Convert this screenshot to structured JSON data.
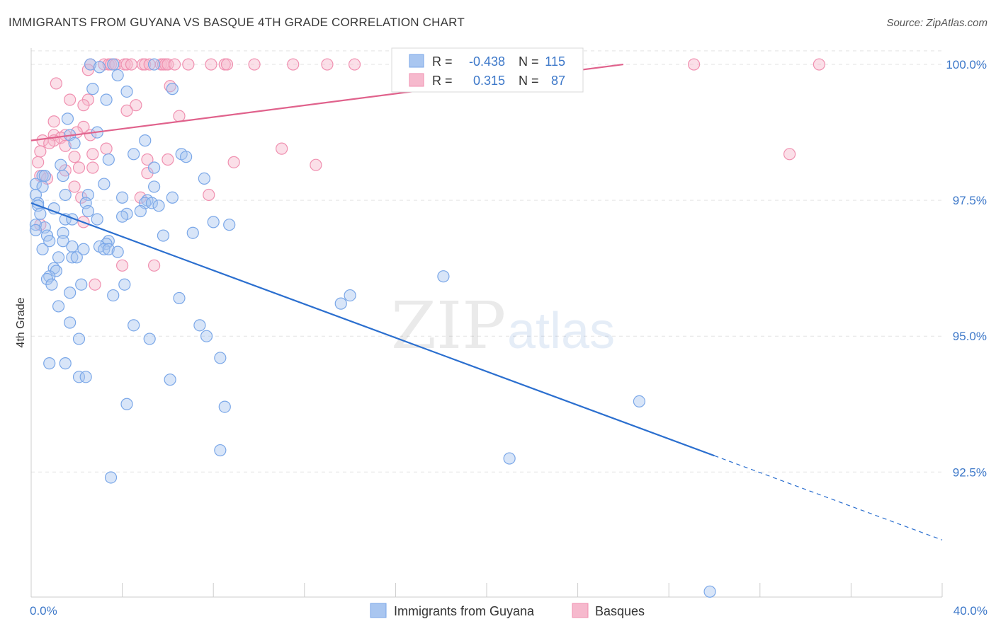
{
  "header": {
    "title": "IMMIGRANTS FROM GUYANA VS BASQUE 4TH GRADE CORRELATION CHART",
    "source": "Source: ZipAtlas.com"
  },
  "watermark": {
    "zip": "ZIP",
    "atlas": "atlas"
  },
  "colors": {
    "guyana": "#7aa7e8",
    "guyana_fill": "#a9c6f0",
    "guyana_line": "#2b6fcf",
    "basques": "#f090b0",
    "basques_fill": "#f6b9cd",
    "basques_line": "#e0628c",
    "axis_text": "#3d78c9",
    "grid": "#dddddd"
  },
  "legend_top": {
    "rows": [
      {
        "r_label": "R =",
        "r_value": "-0.438",
        "n_label": "N =",
        "n_value": "115"
      },
      {
        "r_label": "R =",
        "r_value": "0.315",
        "n_label": "N =",
        "n_value": "87"
      }
    ]
  },
  "legend_bottom": [
    "Immigrants from Guyana",
    "Basques"
  ],
  "chart_data": {
    "type": "scatter",
    "title": "IMMIGRANTS FROM GUYANA VS BASQUE 4TH GRADE CORRELATION CHART",
    "xlabel": "",
    "ylabel": "4th Grade",
    "xlim": [
      0,
      40
    ],
    "ylim": [
      90.2,
      100.3
    ],
    "x_tick_labels": [
      "0.0%",
      "40.0%"
    ],
    "y_ticks": [
      92.5,
      95.0,
      97.5,
      100.0
    ],
    "y_tick_labels": [
      "92.5%",
      "95.0%",
      "97.5%",
      "100.0%"
    ],
    "grid": "horizontal dashed",
    "legend_placement": "top-center",
    "series": [
      {
        "name": "Immigrants from Guyana",
        "r": -0.438,
        "n": 115,
        "trend": {
          "x0": 0,
          "y0": 97.45,
          "x1": 30,
          "y1": 92.8,
          "dashed_to_x": 40,
          "dashed_to_y": 91.25
        },
        "points": [
          [
            2.6,
            100.0
          ],
          [
            3.6,
            100.0
          ],
          [
            3.0,
            99.95
          ],
          [
            3.8,
            99.8
          ],
          [
            5.4,
            100.0
          ],
          [
            2.7,
            99.55
          ],
          [
            4.2,
            99.5
          ],
          [
            6.2,
            99.55
          ],
          [
            3.3,
            99.35
          ],
          [
            1.6,
            99.0
          ],
          [
            2.9,
            98.75
          ],
          [
            1.7,
            98.7
          ],
          [
            1.9,
            98.55
          ],
          [
            5.0,
            98.6
          ],
          [
            4.5,
            98.35
          ],
          [
            6.6,
            98.35
          ],
          [
            3.4,
            98.25
          ],
          [
            6.8,
            98.3
          ],
          [
            1.3,
            98.15
          ],
          [
            5.4,
            98.1
          ],
          [
            0.5,
            97.95
          ],
          [
            0.6,
            97.95
          ],
          [
            1.4,
            97.95
          ],
          [
            7.6,
            97.9
          ],
          [
            3.2,
            97.8
          ],
          [
            0.2,
            97.8
          ],
          [
            0.5,
            97.75
          ],
          [
            5.4,
            97.75
          ],
          [
            1.5,
            97.6
          ],
          [
            2.5,
            97.6
          ],
          [
            0.2,
            97.6
          ],
          [
            4.0,
            97.55
          ],
          [
            6.2,
            97.55
          ],
          [
            5.1,
            97.5
          ],
          [
            2.4,
            97.45
          ],
          [
            0.3,
            97.45
          ],
          [
            5.0,
            97.45
          ],
          [
            5.3,
            97.45
          ],
          [
            0.3,
            97.4
          ],
          [
            5.6,
            97.4
          ],
          [
            1.0,
            97.35
          ],
          [
            2.5,
            97.3
          ],
          [
            4.8,
            97.3
          ],
          [
            0.4,
            97.25
          ],
          [
            4.2,
            97.25
          ],
          [
            4.0,
            97.2
          ],
          [
            1.5,
            97.15
          ],
          [
            1.8,
            97.15
          ],
          [
            2.9,
            97.15
          ],
          [
            8.0,
            97.1
          ],
          [
            8.7,
            97.05
          ],
          [
            0.2,
            97.05
          ],
          [
            0.6,
            97.0
          ],
          [
            0.2,
            96.95
          ],
          [
            1.4,
            96.9
          ],
          [
            0.7,
            96.85
          ],
          [
            7.1,
            96.9
          ],
          [
            5.8,
            96.85
          ],
          [
            3.4,
            96.75
          ],
          [
            0.8,
            96.75
          ],
          [
            1.4,
            96.75
          ],
          [
            3.3,
            96.7
          ],
          [
            3.0,
            96.65
          ],
          [
            1.8,
            96.65
          ],
          [
            2.3,
            96.6
          ],
          [
            3.2,
            96.6
          ],
          [
            0.5,
            96.6
          ],
          [
            3.4,
            96.6
          ],
          [
            3.8,
            96.55
          ],
          [
            1.8,
            96.45
          ],
          [
            2.0,
            96.45
          ],
          [
            1.2,
            96.45
          ],
          [
            1.0,
            96.25
          ],
          [
            1.1,
            96.2
          ],
          [
            0.8,
            96.1
          ],
          [
            0.7,
            96.05
          ],
          [
            18.1,
            96.1
          ],
          [
            2.2,
            95.95
          ],
          [
            0.9,
            95.95
          ],
          [
            4.1,
            95.95
          ],
          [
            1.7,
            95.8
          ],
          [
            3.6,
            95.75
          ],
          [
            14.0,
            95.75
          ],
          [
            6.5,
            95.7
          ],
          [
            13.6,
            95.6
          ],
          [
            1.2,
            95.55
          ],
          [
            1.7,
            95.25
          ],
          [
            4.5,
            95.2
          ],
          [
            7.4,
            95.2
          ],
          [
            7.7,
            95.0
          ],
          [
            2.1,
            94.95
          ],
          [
            5.2,
            94.95
          ],
          [
            8.3,
            94.6
          ],
          [
            0.8,
            94.5
          ],
          [
            1.5,
            94.5
          ],
          [
            2.1,
            94.25
          ],
          [
            2.4,
            94.25
          ],
          [
            6.1,
            94.2
          ],
          [
            4.2,
            93.75
          ],
          [
            8.5,
            93.7
          ],
          [
            26.7,
            93.8
          ],
          [
            8.3,
            92.9
          ],
          [
            21.0,
            92.75
          ],
          [
            3.5,
            92.4
          ],
          [
            29.8,
            90.3
          ]
        ]
      },
      {
        "name": "Basques",
        "r": 0.315,
        "n": 87,
        "trend": {
          "x0": 0,
          "y0": 98.6,
          "x1": 26,
          "y1": 100.0
        },
        "points": [
          [
            2.6,
            100.0
          ],
          [
            3.2,
            100.0
          ],
          [
            3.4,
            100.0
          ],
          [
            3.5,
            100.0
          ],
          [
            3.7,
            100.0
          ],
          [
            4.1,
            100.0
          ],
          [
            4.2,
            100.0
          ],
          [
            4.4,
            100.0
          ],
          [
            4.9,
            100.0
          ],
          [
            5.0,
            100.0
          ],
          [
            5.2,
            100.0
          ],
          [
            5.7,
            100.0
          ],
          [
            5.8,
            100.0
          ],
          [
            5.9,
            100.0
          ],
          [
            6.0,
            100.0
          ],
          [
            6.3,
            100.0
          ],
          [
            6.9,
            100.0
          ],
          [
            7.9,
            100.0
          ],
          [
            8.5,
            100.0
          ],
          [
            8.6,
            100.0
          ],
          [
            9.8,
            100.0
          ],
          [
            11.5,
            100.0
          ],
          [
            13.0,
            100.0
          ],
          [
            14.2,
            100.0
          ],
          [
            20.7,
            100.0
          ],
          [
            29.1,
            100.0
          ],
          [
            34.6,
            100.0
          ],
          [
            2.5,
            99.9
          ],
          [
            1.1,
            99.65
          ],
          [
            6.1,
            99.6
          ],
          [
            2.5,
            99.35
          ],
          [
            1.7,
            99.35
          ],
          [
            4.6,
            99.25
          ],
          [
            2.3,
            99.25
          ],
          [
            4.2,
            99.15
          ],
          [
            6.5,
            99.05
          ],
          [
            1.0,
            98.95
          ],
          [
            2.3,
            98.85
          ],
          [
            2.0,
            98.75
          ],
          [
            1.0,
            98.7
          ],
          [
            1.5,
            98.7
          ],
          [
            2.6,
            98.7
          ],
          [
            1.3,
            98.65
          ],
          [
            0.5,
            98.6
          ],
          [
            1.0,
            98.6
          ],
          [
            0.8,
            98.55
          ],
          [
            1.5,
            98.5
          ],
          [
            3.3,
            98.45
          ],
          [
            11.0,
            98.45
          ],
          [
            0.4,
            98.4
          ],
          [
            2.7,
            98.35
          ],
          [
            1.9,
            98.3
          ],
          [
            5.1,
            98.25
          ],
          [
            6.0,
            98.25
          ],
          [
            0.3,
            98.2
          ],
          [
            8.9,
            98.2
          ],
          [
            12.5,
            98.15
          ],
          [
            33.3,
            98.35
          ],
          [
            2.1,
            98.1
          ],
          [
            2.7,
            98.1
          ],
          [
            1.5,
            98.05
          ],
          [
            5.1,
            98.0
          ],
          [
            0.4,
            97.95
          ],
          [
            0.7,
            97.9
          ],
          [
            1.9,
            97.75
          ],
          [
            7.8,
            97.6
          ],
          [
            4.8,
            97.55
          ],
          [
            2.2,
            97.55
          ],
          [
            2.3,
            97.1
          ],
          [
            0.4,
            97.05
          ],
          [
            4.0,
            96.3
          ],
          [
            5.4,
            96.3
          ],
          [
            2.8,
            95.95
          ]
        ]
      }
    ]
  },
  "axis": {
    "ylabel": "4th Grade",
    "x_left": "0.0%",
    "x_right": "40.0%"
  }
}
